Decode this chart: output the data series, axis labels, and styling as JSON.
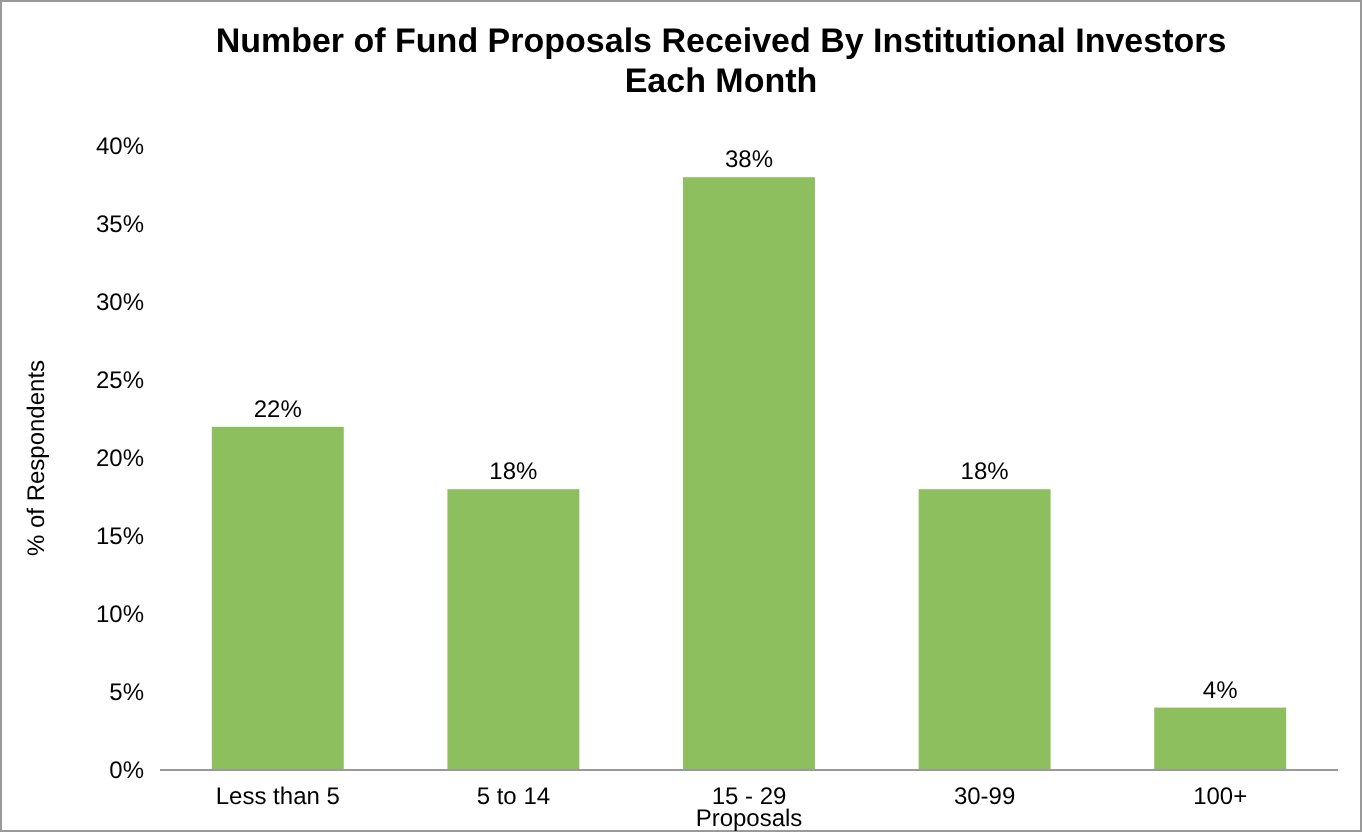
{
  "chart_data": {
    "type": "bar",
    "title": "Number of Fund Proposals Received By Institutional Investors Each Month",
    "xlabel": "Proposals",
    "ylabel": "% of Respondents",
    "categories": [
      "Less than 5",
      "5 to 14",
      "15 - 29",
      "30-99",
      "100+"
    ],
    "values": [
      22,
      18,
      38,
      18,
      4
    ],
    "color": "#8dbf5e",
    "value_labels": [
      "22%",
      "18%",
      "38%",
      "18%",
      "4%"
    ],
    "ylim": [
      0,
      40
    ],
    "yticks": [
      {
        "value": 0,
        "label": "0%"
      },
      {
        "value": 5,
        "label": "5%"
      },
      {
        "value": 10,
        "label": "10%"
      },
      {
        "value": 15,
        "label": "15%"
      },
      {
        "value": 20,
        "label": "20%"
      },
      {
        "value": 25,
        "label": "25%"
      },
      {
        "value": 30,
        "label": "30%"
      },
      {
        "value": 35,
        "label": "35%"
      },
      {
        "value": 40,
        "label": "40%"
      }
    ],
    "grid": false
  }
}
